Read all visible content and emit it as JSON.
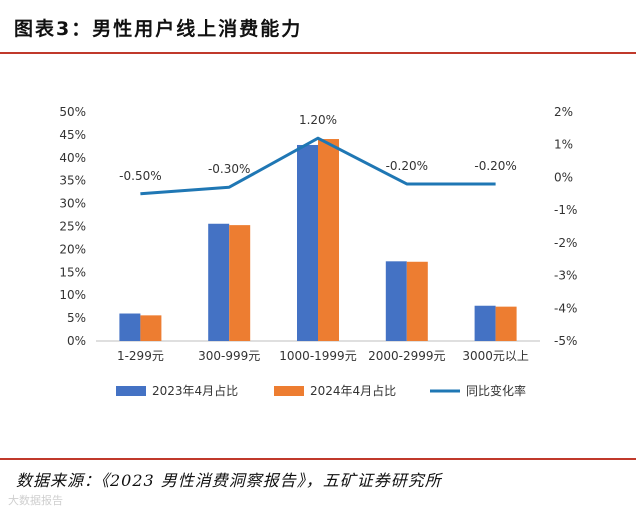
{
  "figure": {
    "title": "图表3：男性用户线上消费能力",
    "source": "数据来源：《2023 男性消费洞察报告》，五矿证券研究所",
    "watermark": "大数据报告"
  },
  "colors": {
    "series_2023": "#4472C4",
    "series_2024": "#ED7D31",
    "series_yoy": "#1F77B4",
    "accent_rule": "#c0392b"
  },
  "chart_data": {
    "type": "bar",
    "categories": [
      "1-299元",
      "300-999元",
      "1000-1999元",
      "2000-2999元",
      "3000元以上"
    ],
    "series": [
      {
        "name": "2023年4月占比",
        "type": "bar",
        "axis": "left",
        "values": [
          6.0,
          25.6,
          42.8,
          17.4,
          7.7
        ]
      },
      {
        "name": "2024年4月占比",
        "type": "bar",
        "axis": "left",
        "values": [
          5.6,
          25.3,
          44.1,
          17.3,
          7.5
        ]
      },
      {
        "name": "同比变化率",
        "type": "line",
        "axis": "right",
        "values": [
          -0.5,
          -0.3,
          1.2,
          -0.2,
          -0.2
        ]
      }
    ],
    "data_labels": [
      "-0.50%",
      "-0.30%",
      "1.20%",
      "-0.20%",
      "-0.20%"
    ],
    "left_axis": {
      "ylim": [
        0,
        50
      ],
      "ticks": [
        0,
        5,
        10,
        15,
        20,
        25,
        30,
        35,
        40,
        45,
        50
      ],
      "tick_labels": [
        "0%",
        "5%",
        "10%",
        "15%",
        "20%",
        "25%",
        "30%",
        "35%",
        "40%",
        "45%",
        "50%"
      ]
    },
    "right_axis": {
      "ylim": [
        -5,
        2
      ],
      "ticks": [
        2,
        1,
        0,
        -1,
        -2,
        -3,
        -4,
        -5
      ],
      "tick_labels": [
        "2%",
        "1%",
        "0%",
        "-1%",
        "-2%",
        "-3%",
        "-4%",
        "-5%"
      ]
    },
    "legend_position": "bottom",
    "grid": false
  }
}
